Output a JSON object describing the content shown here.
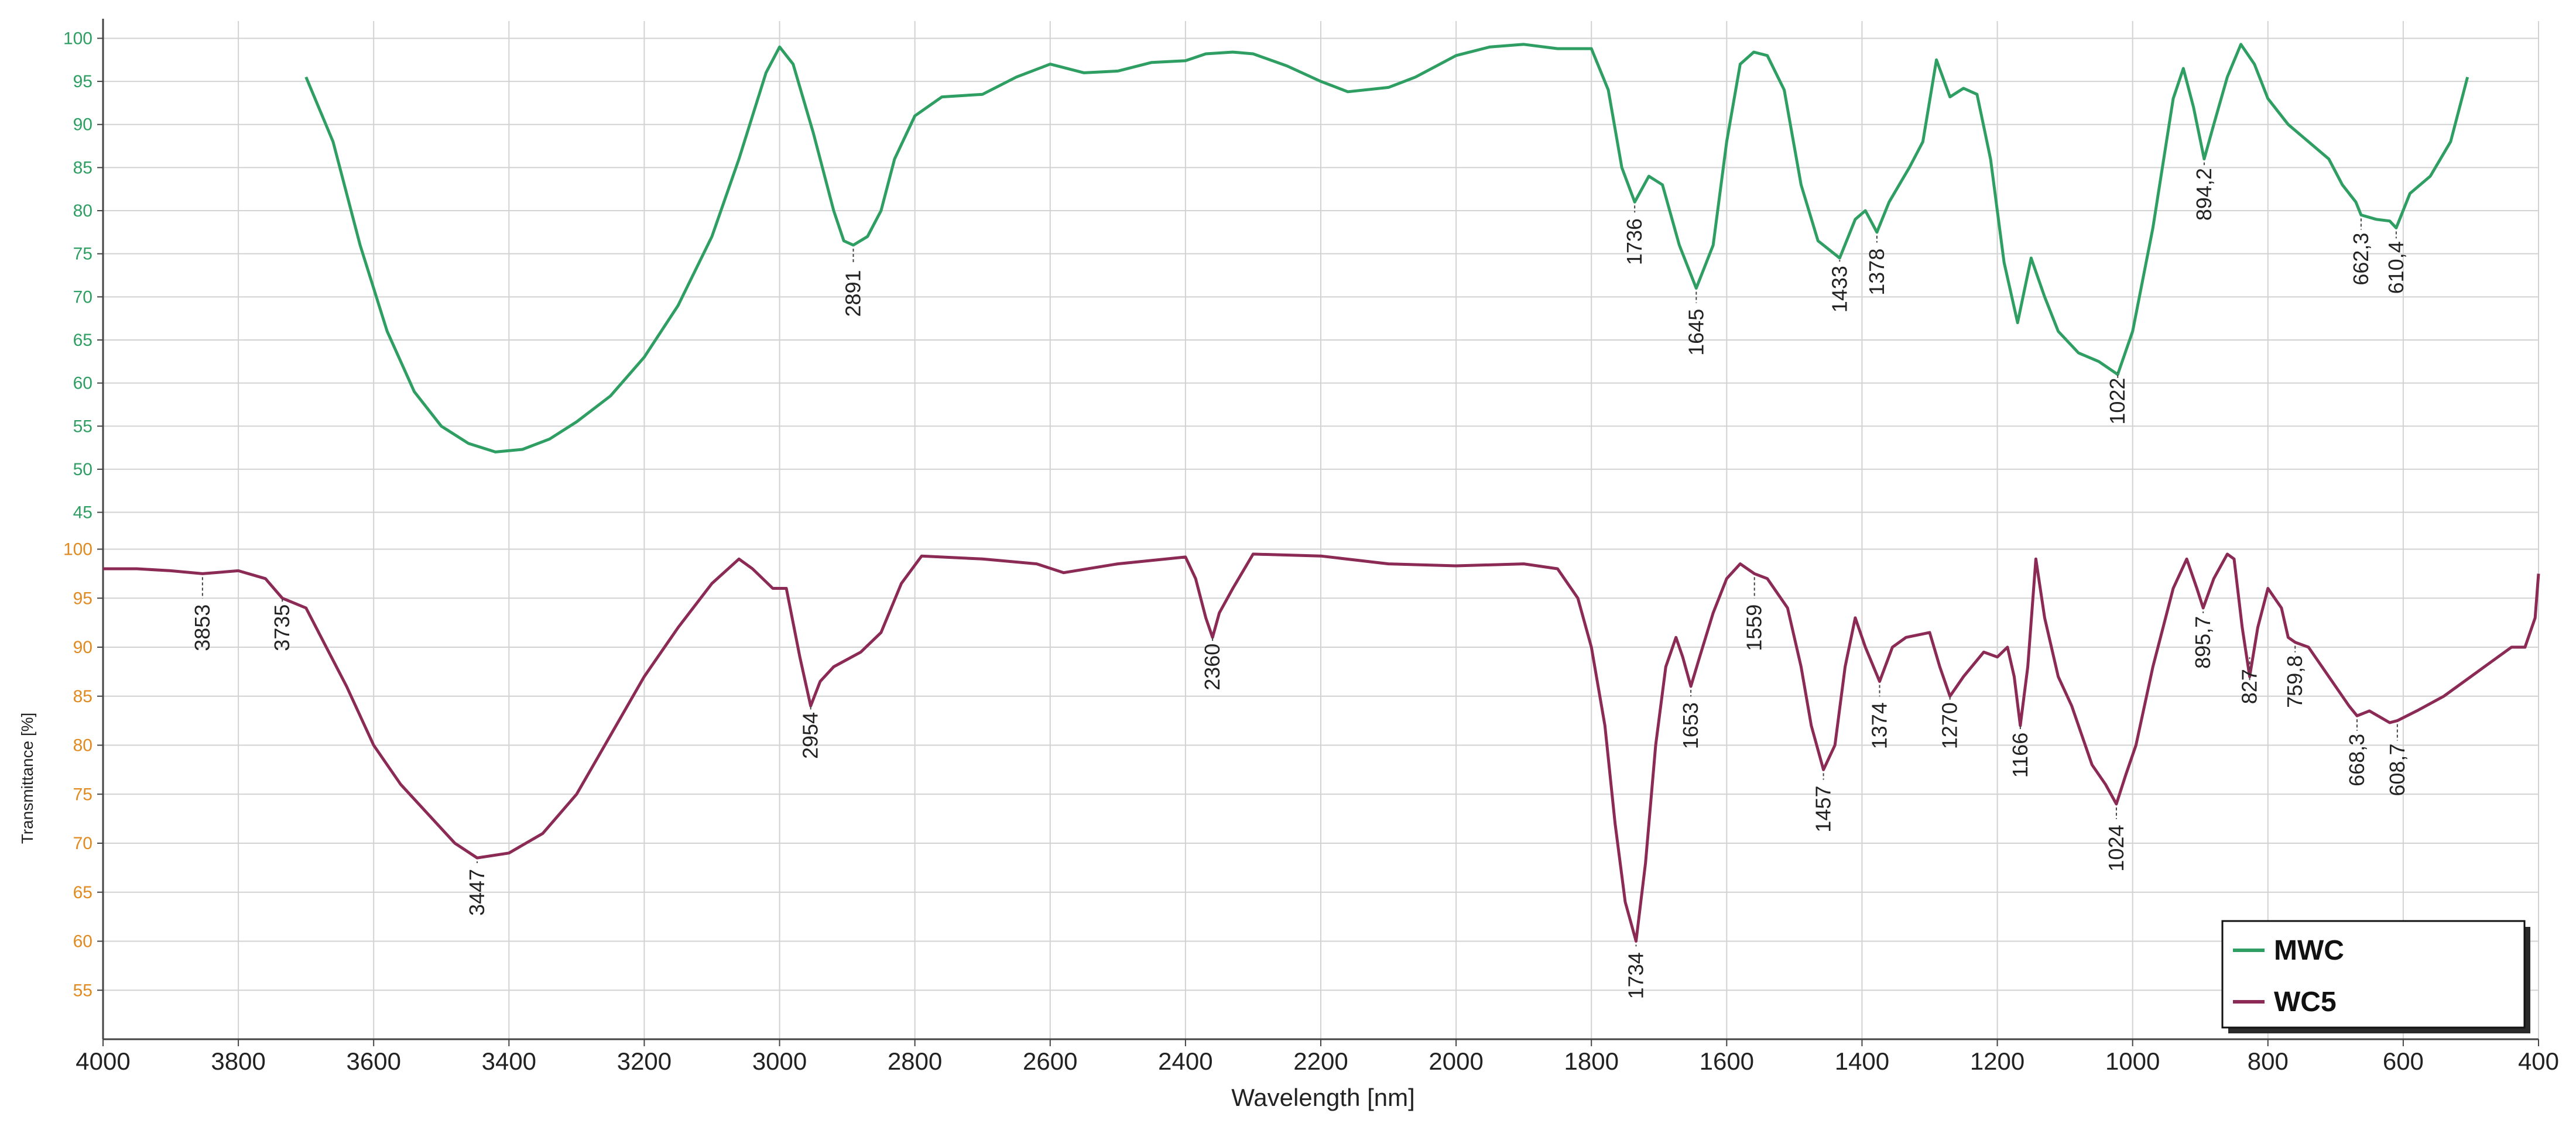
{
  "chart_data": {
    "type": "line",
    "xlabel": "Wavelength [nm]",
    "ylabel": "Transmittance [%]",
    "xlim": [
      4000,
      400
    ],
    "x_ticks": [
      4000,
      3800,
      3600,
      3400,
      3200,
      3000,
      2800,
      2600,
      2400,
      2200,
      2000,
      1800,
      1600,
      1400,
      1200,
      1000,
      800,
      600,
      400
    ],
    "grid": true,
    "legend": {
      "position": "bottom-right",
      "entries": [
        "MWC",
        "WC5"
      ]
    },
    "series": [
      {
        "name": "MWC",
        "color": "#2e9e62",
        "tick_color": "#2e9e62",
        "ylim": [
          43,
          102
        ],
        "y_ticks": [
          100,
          95,
          90,
          85,
          80,
          75,
          70,
          65,
          60,
          55,
          50,
          45
        ],
        "points": [
          [
            3700,
            95.5
          ],
          [
            3660,
            88
          ],
          [
            3620,
            76
          ],
          [
            3580,
            66
          ],
          [
            3540,
            59
          ],
          [
            3500,
            55
          ],
          [
            3460,
            53
          ],
          [
            3420,
            52
          ],
          [
            3380,
            52.3
          ],
          [
            3340,
            53.5
          ],
          [
            3300,
            55.5
          ],
          [
            3250,
            58.5
          ],
          [
            3200,
            63
          ],
          [
            3150,
            69
          ],
          [
            3100,
            77
          ],
          [
            3060,
            86
          ],
          [
            3020,
            96
          ],
          [
            3000,
            99
          ],
          [
            2980,
            97
          ],
          [
            2950,
            89
          ],
          [
            2920,
            80
          ],
          [
            2905,
            76.5
          ],
          [
            2891,
            76
          ],
          [
            2870,
            77
          ],
          [
            2850,
            80
          ],
          [
            2830,
            86
          ],
          [
            2800,
            91
          ],
          [
            2760,
            93.2
          ],
          [
            2700,
            93.5
          ],
          [
            2650,
            95.5
          ],
          [
            2600,
            97
          ],
          [
            2550,
            96
          ],
          [
            2500,
            96.2
          ],
          [
            2450,
            97.2
          ],
          [
            2400,
            97.4
          ],
          [
            2370,
            98.2
          ],
          [
            2330,
            98.4
          ],
          [
            2300,
            98.2
          ],
          [
            2250,
            96.8
          ],
          [
            2200,
            95
          ],
          [
            2160,
            93.8
          ],
          [
            2100,
            94.3
          ],
          [
            2060,
            95.5
          ],
          [
            2000,
            98
          ],
          [
            1950,
            99
          ],
          [
            1900,
            99.3
          ],
          [
            1850,
            98.8
          ],
          [
            1800,
            98.8
          ],
          [
            1775,
            94
          ],
          [
            1755,
            85
          ],
          [
            1736,
            81
          ],
          [
            1715,
            84
          ],
          [
            1695,
            83
          ],
          [
            1670,
            76
          ],
          [
            1645,
            71
          ],
          [
            1620,
            76
          ],
          [
            1600,
            88
          ],
          [
            1580,
            97
          ],
          [
            1560,
            98.4
          ],
          [
            1540,
            98
          ],
          [
            1515,
            94
          ],
          [
            1490,
            83
          ],
          [
            1465,
            76.5
          ],
          [
            1433,
            74.5
          ],
          [
            1410,
            79
          ],
          [
            1395,
            80
          ],
          [
            1378,
            77.5
          ],
          [
            1360,
            81
          ],
          [
            1330,
            85
          ],
          [
            1310,
            88
          ],
          [
            1290,
            97.5
          ],
          [
            1270,
            93.2
          ],
          [
            1250,
            94.2
          ],
          [
            1230,
            93.5
          ],
          [
            1210,
            86
          ],
          [
            1190,
            74
          ],
          [
            1170,
            67
          ],
          [
            1150,
            74.5
          ],
          [
            1130,
            70
          ],
          [
            1110,
            66
          ],
          [
            1080,
            63.5
          ],
          [
            1050,
            62.5
          ],
          [
            1022,
            61
          ],
          [
            1000,
            66
          ],
          [
            970,
            78
          ],
          [
            940,
            93
          ],
          [
            925,
            96.5
          ],
          [
            910,
            92
          ],
          [
            894.2,
            86
          ],
          [
            880,
            90
          ],
          [
            860,
            95.5
          ],
          [
            840,
            99.3
          ],
          [
            820,
            97
          ],
          [
            800,
            93
          ],
          [
            770,
            90
          ],
          [
            740,
            88
          ],
          [
            710,
            86
          ],
          [
            690,
            83
          ],
          [
            670,
            81
          ],
          [
            662.3,
            79.5
          ],
          [
            640,
            79
          ],
          [
            620,
            78.8
          ],
          [
            610.4,
            78
          ],
          [
            590,
            82
          ],
          [
            560,
            84
          ],
          [
            530,
            88
          ],
          [
            505,
            95.5
          ]
        ]
      },
      {
        "name": "WC5",
        "color": "#8b2a55",
        "tick_color": "#e08a20",
        "ylim": [
          50,
          102
        ],
        "y_ticks": [
          100,
          95,
          90,
          85,
          80,
          75,
          70,
          65,
          60,
          55
        ],
        "points": [
          [
            4000,
            98
          ],
          [
            3950,
            98
          ],
          [
            3900,
            97.8
          ],
          [
            3853,
            97.5
          ],
          [
            3800,
            97.8
          ],
          [
            3760,
            97
          ],
          [
            3735,
            95
          ],
          [
            3700,
            94
          ],
          [
            3670,
            90
          ],
          [
            3640,
            86
          ],
          [
            3600,
            80
          ],
          [
            3560,
            76
          ],
          [
            3520,
            73
          ],
          [
            3480,
            70
          ],
          [
            3447,
            68.5
          ],
          [
            3400,
            69
          ],
          [
            3350,
            71
          ],
          [
            3300,
            75
          ],
          [
            3250,
            81
          ],
          [
            3200,
            87
          ],
          [
            3150,
            92
          ],
          [
            3100,
            96.5
          ],
          [
            3060,
            99
          ],
          [
            3040,
            98
          ],
          [
            3010,
            96
          ],
          [
            2990,
            96
          ],
          [
            2970,
            89
          ],
          [
            2954,
            84
          ],
          [
            2940,
            86.5
          ],
          [
            2920,
            88
          ],
          [
            2880,
            89.5
          ],
          [
            2850,
            91.5
          ],
          [
            2820,
            96.5
          ],
          [
            2790,
            99.3
          ],
          [
            2700,
            99
          ],
          [
            2620,
            98.5
          ],
          [
            2580,
            97.6
          ],
          [
            2500,
            98.5
          ],
          [
            2400,
            99.2
          ],
          [
            2385,
            97
          ],
          [
            2370,
            93
          ],
          [
            2360,
            91
          ],
          [
            2350,
            93.5
          ],
          [
            2330,
            96
          ],
          [
            2300,
            99.5
          ],
          [
            2200,
            99.3
          ],
          [
            2100,
            98.5
          ],
          [
            2000,
            98.3
          ],
          [
            1900,
            98.5
          ],
          [
            1850,
            98
          ],
          [
            1820,
            95
          ],
          [
            1800,
            90
          ],
          [
            1780,
            82
          ],
          [
            1765,
            72
          ],
          [
            1750,
            64
          ],
          [
            1734,
            60
          ],
          [
            1720,
            68
          ],
          [
            1705,
            80
          ],
          [
            1690,
            88
          ],
          [
            1675,
            91
          ],
          [
            1665,
            89
          ],
          [
            1653,
            86
          ],
          [
            1640,
            89
          ],
          [
            1620,
            93.5
          ],
          [
            1600,
            97
          ],
          [
            1580,
            98.5
          ],
          [
            1559,
            97.5
          ],
          [
            1540,
            97
          ],
          [
            1510,
            94
          ],
          [
            1490,
            88
          ],
          [
            1475,
            82
          ],
          [
            1457,
            77.5
          ],
          [
            1440,
            80
          ],
          [
            1425,
            88
          ],
          [
            1410,
            93
          ],
          [
            1395,
            90
          ],
          [
            1374,
            86.5
          ],
          [
            1355,
            90
          ],
          [
            1335,
            91
          ],
          [
            1300,
            91.5
          ],
          [
            1285,
            88
          ],
          [
            1270,
            85
          ],
          [
            1250,
            87
          ],
          [
            1220,
            89.5
          ],
          [
            1200,
            89
          ],
          [
            1185,
            90
          ],
          [
            1175,
            87
          ],
          [
            1166,
            82
          ],
          [
            1155,
            88
          ],
          [
            1143,
            99
          ],
          [
            1130,
            93
          ],
          [
            1110,
            87
          ],
          [
            1090,
            84
          ],
          [
            1060,
            78
          ],
          [
            1040,
            76
          ],
          [
            1024,
            74
          ],
          [
            1010,
            77
          ],
          [
            995,
            80
          ],
          [
            970,
            88
          ],
          [
            940,
            96
          ],
          [
            920,
            99
          ],
          [
            905,
            96
          ],
          [
            895.7,
            94
          ],
          [
            880,
            97
          ],
          [
            860,
            99.5
          ],
          [
            850,
            99
          ],
          [
            838,
            92
          ],
          [
            827,
            87
          ],
          [
            815,
            92
          ],
          [
            800,
            96
          ],
          [
            780,
            94
          ],
          [
            770,
            91
          ],
          [
            759.8,
            90.5
          ],
          [
            740,
            90
          ],
          [
            720,
            88
          ],
          [
            700,
            86
          ],
          [
            680,
            84
          ],
          [
            668.3,
            83
          ],
          [
            650,
            83.5
          ],
          [
            620,
            82.3
          ],
          [
            608.7,
            82.5
          ],
          [
            580,
            83.5
          ],
          [
            540,
            85
          ],
          [
            500,
            87
          ],
          [
            470,
            88.5
          ],
          [
            440,
            90
          ],
          [
            420,
            90
          ],
          [
            405,
            93
          ],
          [
            400,
            97.5
          ]
        ]
      }
    ],
    "annotations": {
      "MWC": [
        {
          "x": 2891,
          "label": "2891",
          "ty": 67
        },
        {
          "x": 1736,
          "label": "1736",
          "ty": 73
        },
        {
          "x": 1645,
          "label": "1645",
          "ty": 62.5
        },
        {
          "x": 1433,
          "label": "1433",
          "ty": 67.5
        },
        {
          "x": 1378,
          "label": "1378",
          "ty": 69.5
        },
        {
          "x": 1022,
          "label": "1022",
          "ty": 54.5
        },
        {
          "x": 894.2,
          "label": "894,2",
          "ty": 78.5
        },
        {
          "x": 662.3,
          "label": "662,3",
          "ty": 71
        },
        {
          "x": 610.4,
          "label": "610,4",
          "ty": 70
        }
      ],
      "WC5": [
        {
          "x": 3853,
          "label": "3853",
          "ty": 89
        },
        {
          "x": 3735,
          "label": "3735",
          "ty": 89
        },
        {
          "x": 3447,
          "label": "3447",
          "ty": 62
        },
        {
          "x": 2954,
          "label": "2954",
          "ty": 78
        },
        {
          "x": 2360,
          "label": "2360",
          "ty": 85
        },
        {
          "x": 1734,
          "label": "1734",
          "ty": 53.5
        },
        {
          "x": 1653,
          "label": "1653",
          "ty": 79
        },
        {
          "x": 1559,
          "label": "1559",
          "ty": 89
        },
        {
          "x": 1457,
          "label": "1457",
          "ty": 70.5
        },
        {
          "x": 1374,
          "label": "1374",
          "ty": 79
        },
        {
          "x": 1270,
          "label": "1270",
          "ty": 79
        },
        {
          "x": 1166,
          "label": "1166",
          "ty": 76
        },
        {
          "x": 1024,
          "label": "1024",
          "ty": 66.5
        },
        {
          "x": 895.7,
          "label": "895,7",
          "ty": 87.5
        },
        {
          "x": 827,
          "label": "827",
          "ty": 83
        },
        {
          "x": 759.8,
          "label": "759,8",
          "ty": 83.5
        },
        {
          "x": 668.3,
          "label": "668,3",
          "ty": 75.5
        },
        {
          "x": 608.7,
          "label": "608,7",
          "ty": 74.5
        }
      ]
    }
  }
}
